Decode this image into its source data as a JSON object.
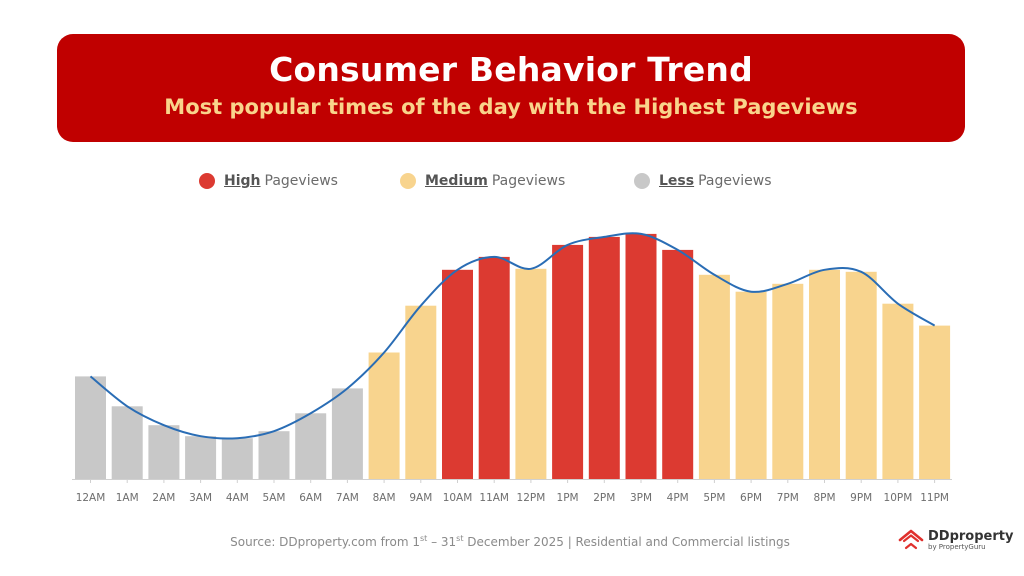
{
  "header": {
    "title": "Consumer Behavior Trend",
    "subtitle": "Most popular times of the day with the Highest Pageviews"
  },
  "legend": [
    {
      "key": "High",
      "suffix": "Pageviews",
      "color": "#dc3a31"
    },
    {
      "key": "Medium",
      "suffix": "Pageviews",
      "color": "#f8d48e"
    },
    {
      "key": "Less",
      "suffix": "Pageviews",
      "color": "#c8c8c8"
    }
  ],
  "chart_data": {
    "type": "bar",
    "categories": [
      "12AM",
      "1AM",
      "2AM",
      "3AM",
      "4AM",
      "5AM",
      "6AM",
      "7AM",
      "8AM",
      "9AM",
      "10AM",
      "11AM",
      "12PM",
      "1PM",
      "2PM",
      "3PM",
      "4PM",
      "5PM",
      "6PM",
      "7PM",
      "8PM",
      "9PM",
      "10PM",
      "11PM"
    ],
    "values": [
      103,
      73,
      54,
      43,
      41,
      48,
      66,
      91,
      127,
      174,
      210,
      223,
      211,
      235,
      243,
      246,
      230,
      205,
      188,
      196,
      210,
      208,
      176,
      154
    ],
    "levels": [
      "Less",
      "Less",
      "Less",
      "Less",
      "Less",
      "Less",
      "Less",
      "Less",
      "Medium",
      "Medium",
      "High",
      "High",
      "Medium",
      "High",
      "High",
      "High",
      "High",
      "Medium",
      "Medium",
      "Medium",
      "Medium",
      "Medium",
      "Medium",
      "Medium"
    ],
    "trend_line": [
      103,
      73,
      54,
      43,
      41,
      48,
      66,
      91,
      127,
      174,
      210,
      223,
      211,
      235,
      243,
      246,
      230,
      205,
      188,
      196,
      210,
      208,
      176,
      154
    ],
    "trend_color": "#2a6db5",
    "ylim": [
      0,
      260
    ],
    "grid": false,
    "legend_position": "top"
  },
  "footer": {
    "source_pre": "Source: DDproperty.com from 1",
    "source_sup1": "st",
    "source_mid": "  – 31",
    "source_sup2": "st",
    "source_post": " December 2025 | Residential and Commercial listings"
  },
  "logo": {
    "name": "DDproperty",
    "tagline": "by PropertyGuru",
    "color": "#e0302d"
  }
}
